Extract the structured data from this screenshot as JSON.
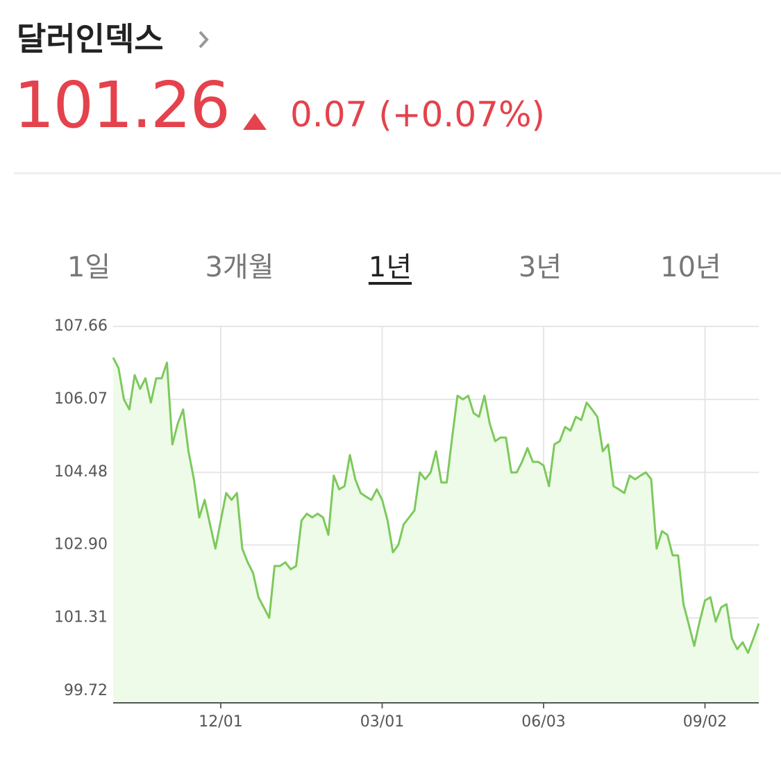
{
  "header": {
    "title": "달러인덱스",
    "price": "101.26",
    "change": "0.07 (+0.07%)"
  },
  "tabs": {
    "items": [
      "1일",
      "3개월",
      "1년",
      "3년",
      "10년"
    ],
    "active": 2
  },
  "chart_data": {
    "type": "line",
    "color": "#7cc95c",
    "fill": "#eefbe8",
    "grid": true,
    "ylim": [
      99.46,
      107.66
    ],
    "yticks": [
      {
        "value": 99.72,
        "label": "99.72"
      },
      {
        "value": 101.31,
        "label": "101.31"
      },
      {
        "value": 102.9,
        "label": "102.90"
      },
      {
        "value": 104.48,
        "label": "104.48"
      },
      {
        "value": 106.07,
        "label": "106.07"
      },
      {
        "value": 107.66,
        "label": "107.66"
      }
    ],
    "categories": [
      null,
      null,
      null,
      null,
      null,
      null,
      null,
      null,
      null,
      null,
      null,
      null,
      null,
      null,
      null,
      null,
      null,
      null,
      null,
      null,
      "12/01",
      null,
      null,
      null,
      null,
      null,
      null,
      null,
      null,
      null,
      null,
      null,
      null,
      null,
      null,
      null,
      null,
      null,
      null,
      null,
      null,
      null,
      null,
      null,
      null,
      null,
      null,
      null,
      null,
      null,
      "03/01",
      null,
      null,
      null,
      null,
      null,
      null,
      null,
      null,
      null,
      null,
      null,
      null,
      null,
      null,
      null,
      null,
      null,
      null,
      null,
      null,
      null,
      null,
      null,
      null,
      null,
      null,
      null,
      null,
      null,
      "06/03",
      null,
      null,
      null,
      null,
      null,
      null,
      null,
      null,
      null,
      null,
      null,
      null,
      null,
      null,
      null,
      null,
      null,
      null,
      null,
      null,
      null,
      null,
      null,
      null,
      null,
      null,
      null,
      null,
      null,
      "09/02",
      null,
      null,
      null,
      null,
      null,
      null,
      null,
      null,
      null,
      null
    ],
    "values": [
      106.98,
      106.75,
      106.07,
      105.85,
      106.6,
      106.3,
      106.53,
      106.0,
      106.53,
      106.53,
      106.87,
      105.09,
      105.54,
      105.85,
      104.94,
      104.33,
      103.5,
      103.88,
      103.35,
      102.82,
      103.43,
      104.03,
      103.88,
      104.03,
      102.82,
      102.52,
      102.29,
      101.76,
      101.54,
      101.31,
      102.44,
      102.44,
      102.52,
      102.37,
      102.44,
      103.43,
      103.58,
      103.5,
      103.58,
      103.5,
      103.12,
      104.41,
      104.11,
      104.18,
      104.86,
      104.33,
      104.03,
      103.95,
      103.88,
      104.11,
      103.88,
      103.43,
      102.74,
      102.9,
      103.35,
      103.5,
      103.65,
      104.48,
      104.33,
      104.48,
      104.94,
      104.26,
      104.26,
      105.24,
      106.15,
      106.07,
      106.15,
      105.77,
      105.69,
      106.15,
      105.54,
      105.16,
      105.24,
      105.24,
      104.48,
      104.48,
      104.71,
      105.01,
      104.71,
      104.71,
      104.63,
      104.18,
      105.09,
      105.16,
      105.47,
      105.39,
      105.69,
      105.62,
      106.0,
      105.85,
      105.69,
      104.94,
      105.09,
      104.18,
      104.11,
      104.03,
      104.41,
      104.33,
      104.41,
      104.48,
      104.33,
      102.82,
      103.2,
      103.12,
      102.67,
      102.67,
      101.61,
      101.16,
      100.7,
      101.23,
      101.69,
      101.76,
      101.23,
      101.54,
      101.61,
      100.86,
      100.63,
      100.78,
      100.55,
      100.86,
      101.19
    ]
  }
}
